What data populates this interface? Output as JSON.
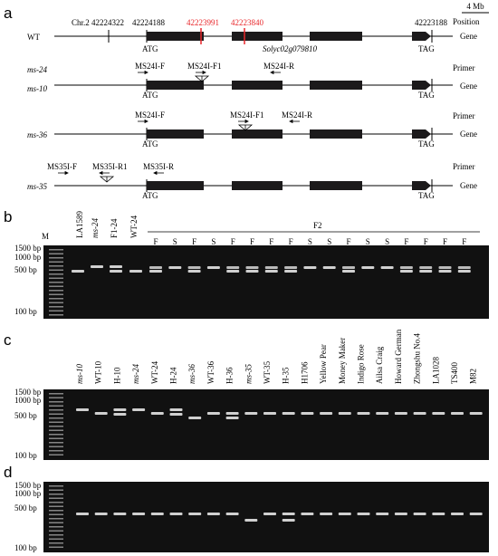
{
  "panel_a": {
    "letter": "a",
    "scale": "4 Mb",
    "col_position": "Position",
    "col_gene": "Gene",
    "col_primer": "Primer",
    "coords": {
      "chr": "Chr.2 42224322",
      "c1": "42224188",
      "c2": "42223991",
      "c3": "42223840",
      "c4": "42223188"
    },
    "gene_id": "Solyc02g079810",
    "atg": "ATG",
    "tag": "TAG",
    "wt_label": "WT",
    "ms24_label": "ms-24",
    "ms10_label": "ms-10",
    "ms36_label": "ms-36",
    "ms35_label": "ms-35",
    "primers": {
      "ms24_f": "MS24I-F",
      "ms24_f1": "MS24I-F1",
      "ms24_r": "MS24I-R",
      "ms36_f": "MS24I-F",
      "ms36_f1": "MS24I-F1",
      "ms36_r": "MS24I-R",
      "ms35_f": "MS35I-F",
      "ms35_r1": "MS35I-R1",
      "ms35_r": "MS35I-R"
    },
    "colors": {
      "exon": "#1c1a1b",
      "mutation_marks": "#e8262a"
    }
  },
  "panel_b": {
    "letter": "b",
    "lanes": [
      "M",
      "LA1589",
      "ms-24",
      "F1-24",
      "WT-24"
    ],
    "f2_group": "F2",
    "f2_lanes": [
      "F",
      "S",
      "F",
      "S",
      "F",
      "F",
      "F",
      "F",
      "S",
      "S",
      "F",
      "S",
      "S",
      "F",
      "F",
      "F",
      "F"
    ],
    "ladder": [
      "1500 bp",
      "1000 bp",
      "500 bp",
      "100 bp"
    ]
  },
  "panel_c": {
    "letter": "c",
    "lanes": [
      "ms-10",
      "WT-10",
      "H-10",
      "ms-24",
      "WT-24",
      "H-24",
      "ms-36",
      "WT-36",
      "H-36",
      "ms-35",
      "WT-35",
      "H-35",
      "H1706",
      "Yellow Pear",
      "Money Maker",
      "Indigo Rose",
      "Ailsa Craig",
      "Howard German",
      "Zhongshu No.4",
      "LA1028",
      "TS400",
      "M82"
    ],
    "italic_lanes": [
      "ms-10",
      "ms-24",
      "ms-36",
      "ms-35"
    ],
    "ladder": [
      "1500 bp",
      "1000 bp",
      "500 bp",
      "100 bp"
    ]
  },
  "panel_d": {
    "letter": "d",
    "ladder": [
      "1500 bp",
      "1000 bp",
      "500 bp",
      "100 bp"
    ]
  }
}
